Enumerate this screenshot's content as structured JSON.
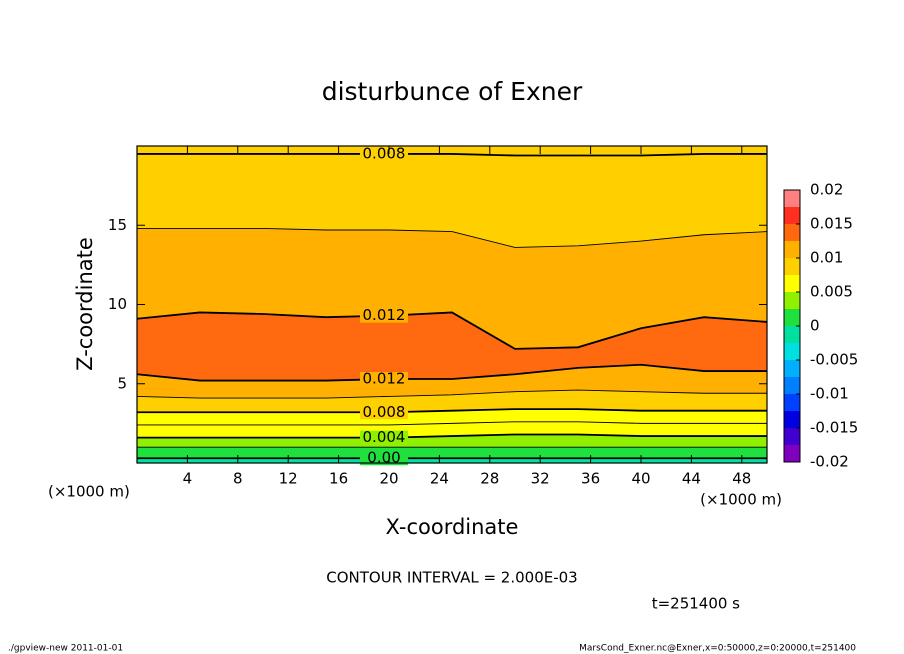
{
  "chart_data": {
    "type": "contour",
    "title": "disturbunce of Exner",
    "x_label": "X-coordinate",
    "y_label": "Z-coordinate",
    "x_unit": "(×1000 m)",
    "y_unit": "(×1000 m)",
    "xlim": [
      0,
      50
    ],
    "xticks": [
      4,
      8,
      12,
      16,
      20,
      24,
      28,
      32,
      36,
      40,
      44,
      48
    ],
    "ylim": [
      0,
      20
    ],
    "yticks": [
      5,
      10,
      15
    ],
    "x": [
      0,
      5,
      10,
      15,
      20,
      25,
      30,
      35,
      40,
      45,
      50
    ],
    "isolines": [
      {
        "level": 0,
        "label": "0.00",
        "z": [
          0.3,
          0.3,
          0.3,
          0.3,
          0.3,
          0.3,
          0.3,
          0.3,
          0.3,
          0.3,
          0.3
        ]
      },
      {
        "level": 0.002,
        "z": [
          1.0,
          1.0,
          1.0,
          1.0,
          1.0,
          1.0,
          1.0,
          1.0,
          1.0,
          1.0,
          1.0
        ]
      },
      {
        "level": 0.004,
        "label": "0.004",
        "z": [
          1.6,
          1.6,
          1.6,
          1.6,
          1.6,
          1.7,
          1.8,
          1.8,
          1.7,
          1.7,
          1.7
        ]
      },
      {
        "level": 0.006,
        "z": [
          2.4,
          2.4,
          2.4,
          2.4,
          2.4,
          2.5,
          2.6,
          2.6,
          2.5,
          2.5,
          2.5
        ]
      },
      {
        "level": 0.008,
        "label": "0.008",
        "z": [
          3.2,
          3.2,
          3.2,
          3.2,
          3.2,
          3.3,
          3.4,
          3.4,
          3.3,
          3.3,
          3.3
        ]
      },
      {
        "level": 0.01,
        "z": [
          4.2,
          4.1,
          4.1,
          4.1,
          4.2,
          4.3,
          4.5,
          4.6,
          4.5,
          4.4,
          4.4
        ]
      },
      {
        "level": 0.012,
        "label": "0.012",
        "z": [
          5.6,
          5.2,
          5.2,
          5.2,
          5.3,
          5.3,
          5.6,
          6.0,
          6.2,
          5.8,
          5.8
        ]
      },
      {
        "level": 0.012,
        "label": "0.012",
        "z": [
          9.1,
          9.5,
          9.4,
          9.2,
          9.3,
          9.5,
          7.2,
          7.3,
          8.5,
          9.2,
          8.9
        ]
      },
      {
        "level": 0.01,
        "z": [
          14.8,
          14.8,
          14.8,
          14.7,
          14.7,
          14.6,
          13.6,
          13.7,
          14.0,
          14.4,
          14.6
        ]
      },
      {
        "level": 0.008,
        "label": "0.008",
        "z": [
          19.5,
          19.5,
          19.5,
          19.5,
          19.5,
          19.5,
          19.4,
          19.4,
          19.4,
          19.5,
          19.5
        ]
      }
    ],
    "band_values": [
      -0.001,
      0.001,
      0.003,
      0.005,
      0.007,
      0.009,
      0.011,
      0.013,
      0.011,
      0.009,
      0.0075
    ],
    "colorbar": {
      "lim": [
        -0.02,
        0.02
      ],
      "ticks": [
        0.02,
        0.015,
        0.01,
        0.005,
        0,
        -0.005,
        -0.01,
        -0.015,
        -0.02
      ],
      "levels": [
        -0.02,
        -0.0175,
        -0.015,
        -0.0125,
        -0.01,
        -0.0075,
        -0.005,
        -0.0025,
        0,
        0.0025,
        0.005,
        0.0075,
        0.01,
        0.0125,
        0.015,
        0.0175,
        0.02
      ],
      "colors": [
        "#8000c0",
        "#4000d0",
        "#0000e0",
        "#0040ff",
        "#0080ff",
        "#00b0ff",
        "#00e0e0",
        "#00e0a0",
        "#20e040",
        "#90f000",
        "#ffff00",
        "#ffd000",
        "#ffb000",
        "#ff6a10",
        "#ff3020",
        "#ff8080"
      ]
    },
    "contour_interval": "CONTOUR INTERVAL = 2.000E-03",
    "time": "t=251400 s",
    "footer_left": "./gpview-new   2011-01-01",
    "footer_right": "MarsCond_Exner.nc@Exner,x=0:50000,z=0:20000,t=251400"
  }
}
